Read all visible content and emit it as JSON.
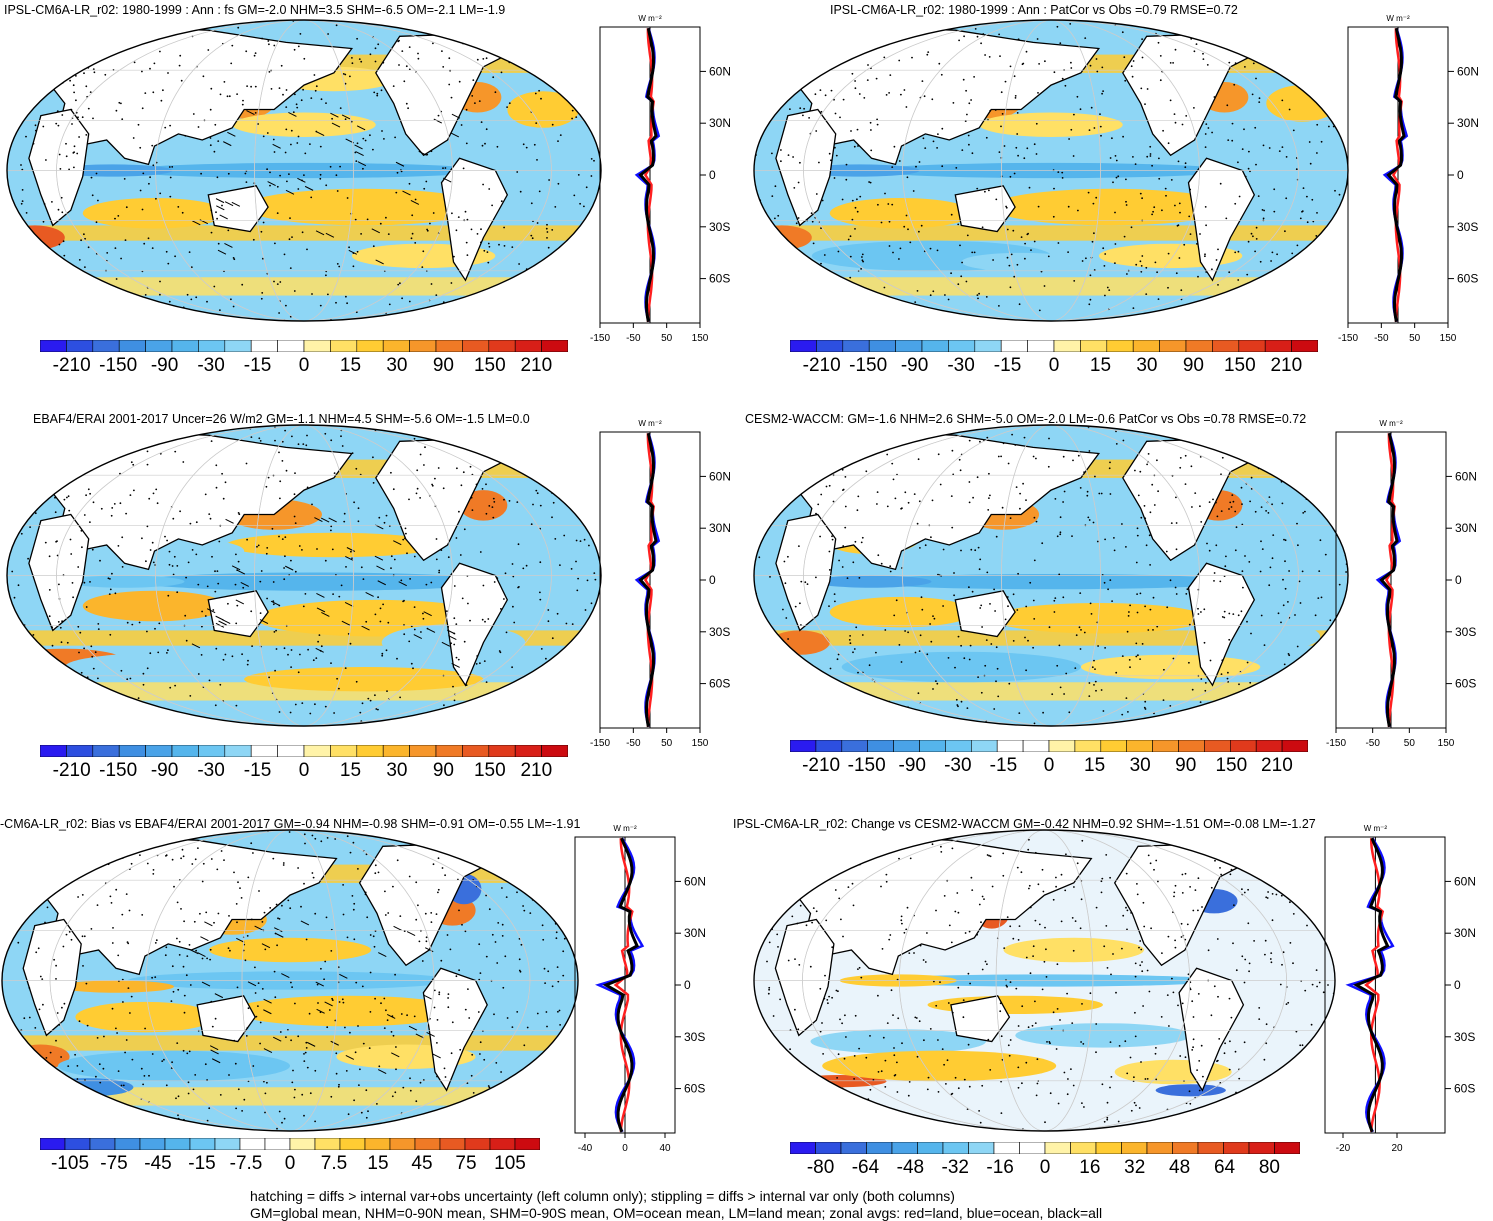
{
  "panels": [
    {
      "id": "p1",
      "title": "IPSL-CM6A-LR_r02: 1980-1999 : Ann : fs GM=-2.0 NHM=3.5 SHM=-6.5 OM=-2.1 LM=-1.9",
      "unit": "W m⁻²",
      "lat_ticks": [
        "60N",
        "30N",
        "0",
        "30S",
        "60S"
      ],
      "zonal_xticks": [
        "-150",
        "-50",
        "50",
        "150"
      ],
      "colorbar_labels": [
        "-210",
        "-150",
        "-90",
        "-30",
        "-15",
        "0",
        "15",
        "30",
        "90",
        "150",
        "210"
      ],
      "hatching": true
    },
    {
      "id": "p2",
      "title": "IPSL-CM6A-LR_r02: 1980-1999 : Ann : PatCor vs Obs =0.79 RMSE=0.72",
      "unit": "W m⁻²",
      "lat_ticks": [
        "60N",
        "30N",
        "0",
        "30S",
        "60S"
      ],
      "zonal_xticks": [
        "-150",
        "-50",
        "50",
        "150"
      ],
      "colorbar_labels": [
        "-210",
        "-150",
        "-90",
        "-30",
        "-15",
        "0",
        "15",
        "30",
        "90",
        "150",
        "210"
      ],
      "hatching": false
    },
    {
      "id": "p3",
      "title": "EBAF4/ERAI 2001-2017 Uncer=26 W/m2 GM=-1.1 NHM=4.5 SHM=-5.6 OM=-1.5 LM=0.0",
      "unit": "W m⁻²",
      "lat_ticks": [
        "60N",
        "30N",
        "0",
        "30S",
        "60S"
      ],
      "zonal_xticks": [
        "-150",
        "-50",
        "50",
        "150"
      ],
      "colorbar_labels": [
        "-210",
        "-150",
        "-90",
        "-30",
        "-15",
        "0",
        "15",
        "30",
        "90",
        "150",
        "210"
      ],
      "hatching": true
    },
    {
      "id": "p4",
      "title": "CESM2-WACCM: GM=-1.6 NHM=2.6 SHM=-5.0 OM=-2.0 LM=-0.6 PatCor vs Obs =0.78 RMSE=0.72",
      "unit": "W m⁻²",
      "lat_ticks": [
        "60N",
        "30N",
        "0",
        "30S",
        "60S"
      ],
      "zonal_xticks": [
        "-150",
        "-50",
        "50",
        "150"
      ],
      "colorbar_labels": [
        "-210",
        "-150",
        "-90",
        "-30",
        "-15",
        "0",
        "15",
        "30",
        "90",
        "150",
        "210"
      ],
      "hatching": false
    },
    {
      "id": "p5",
      "title": "-CM6A-LR_r02: Bias vs EBAF4/ERAI 2001-2017 GM=-0.94 NHM=-0.98 SHM=-0.91 OM=-0.55 LM=-1.91",
      "unit": "W m⁻²",
      "lat_ticks": [
        "60N",
        "30N",
        "0",
        "30S",
        "60S"
      ],
      "zonal_xticks": [
        "-40",
        "0",
        "40"
      ],
      "colorbar_labels": [
        "-105",
        "-75",
        "-45",
        "-15",
        "-7.5",
        "0",
        "7.5",
        "15",
        "45",
        "75",
        "105"
      ],
      "hatching": true
    },
    {
      "id": "p6",
      "title": "IPSL-CM6A-LR_r02: Change vs CESM2-WACCM GM=-0.42 NHM=0.92 SHM=-1.51 OM=-0.08 LM=-1.27",
      "unit": "W m⁻²",
      "lat_ticks": [
        "60N",
        "30N",
        "0",
        "30S",
        "60S"
      ],
      "zonal_xticks": [
        "-20",
        "20"
      ],
      "colorbar_labels": [
        "-80",
        "-64",
        "-48",
        "-32",
        "-16",
        "0",
        "16",
        "32",
        "48",
        "64",
        "80"
      ],
      "hatching": false
    }
  ],
  "colors": {
    "scale": [
      "#2a1bf0",
      "#2d4fe0",
      "#3a6fdc",
      "#3f8fe2",
      "#4aa3e8",
      "#55b5ec",
      "#6cc6f2",
      "#8ed6f5",
      "#ffffff",
      "#ffffff",
      "#fff3a8",
      "#ffe065",
      "#ffcc33",
      "#fbb52c",
      "#f6962a",
      "#f07a26",
      "#e85a22",
      "#e03a1c",
      "#d81f18",
      "#cc0a10"
    ],
    "land": "#ffffff",
    "zonal_land": "#ff2020",
    "zonal_ocean": "#1010ff",
    "zonal_all": "#000000"
  },
  "footnote": [
    "hatching = diffs > internal var+obs uncertainty (left column only); stippling = diffs > internal var only (both columns)",
    "GM=global mean, NHM=0-90N mean, SHM=0-90S mean, OM=ocean mean, LM=land mean; zonal avgs: red=land, blue=ocean, black=all"
  ]
}
